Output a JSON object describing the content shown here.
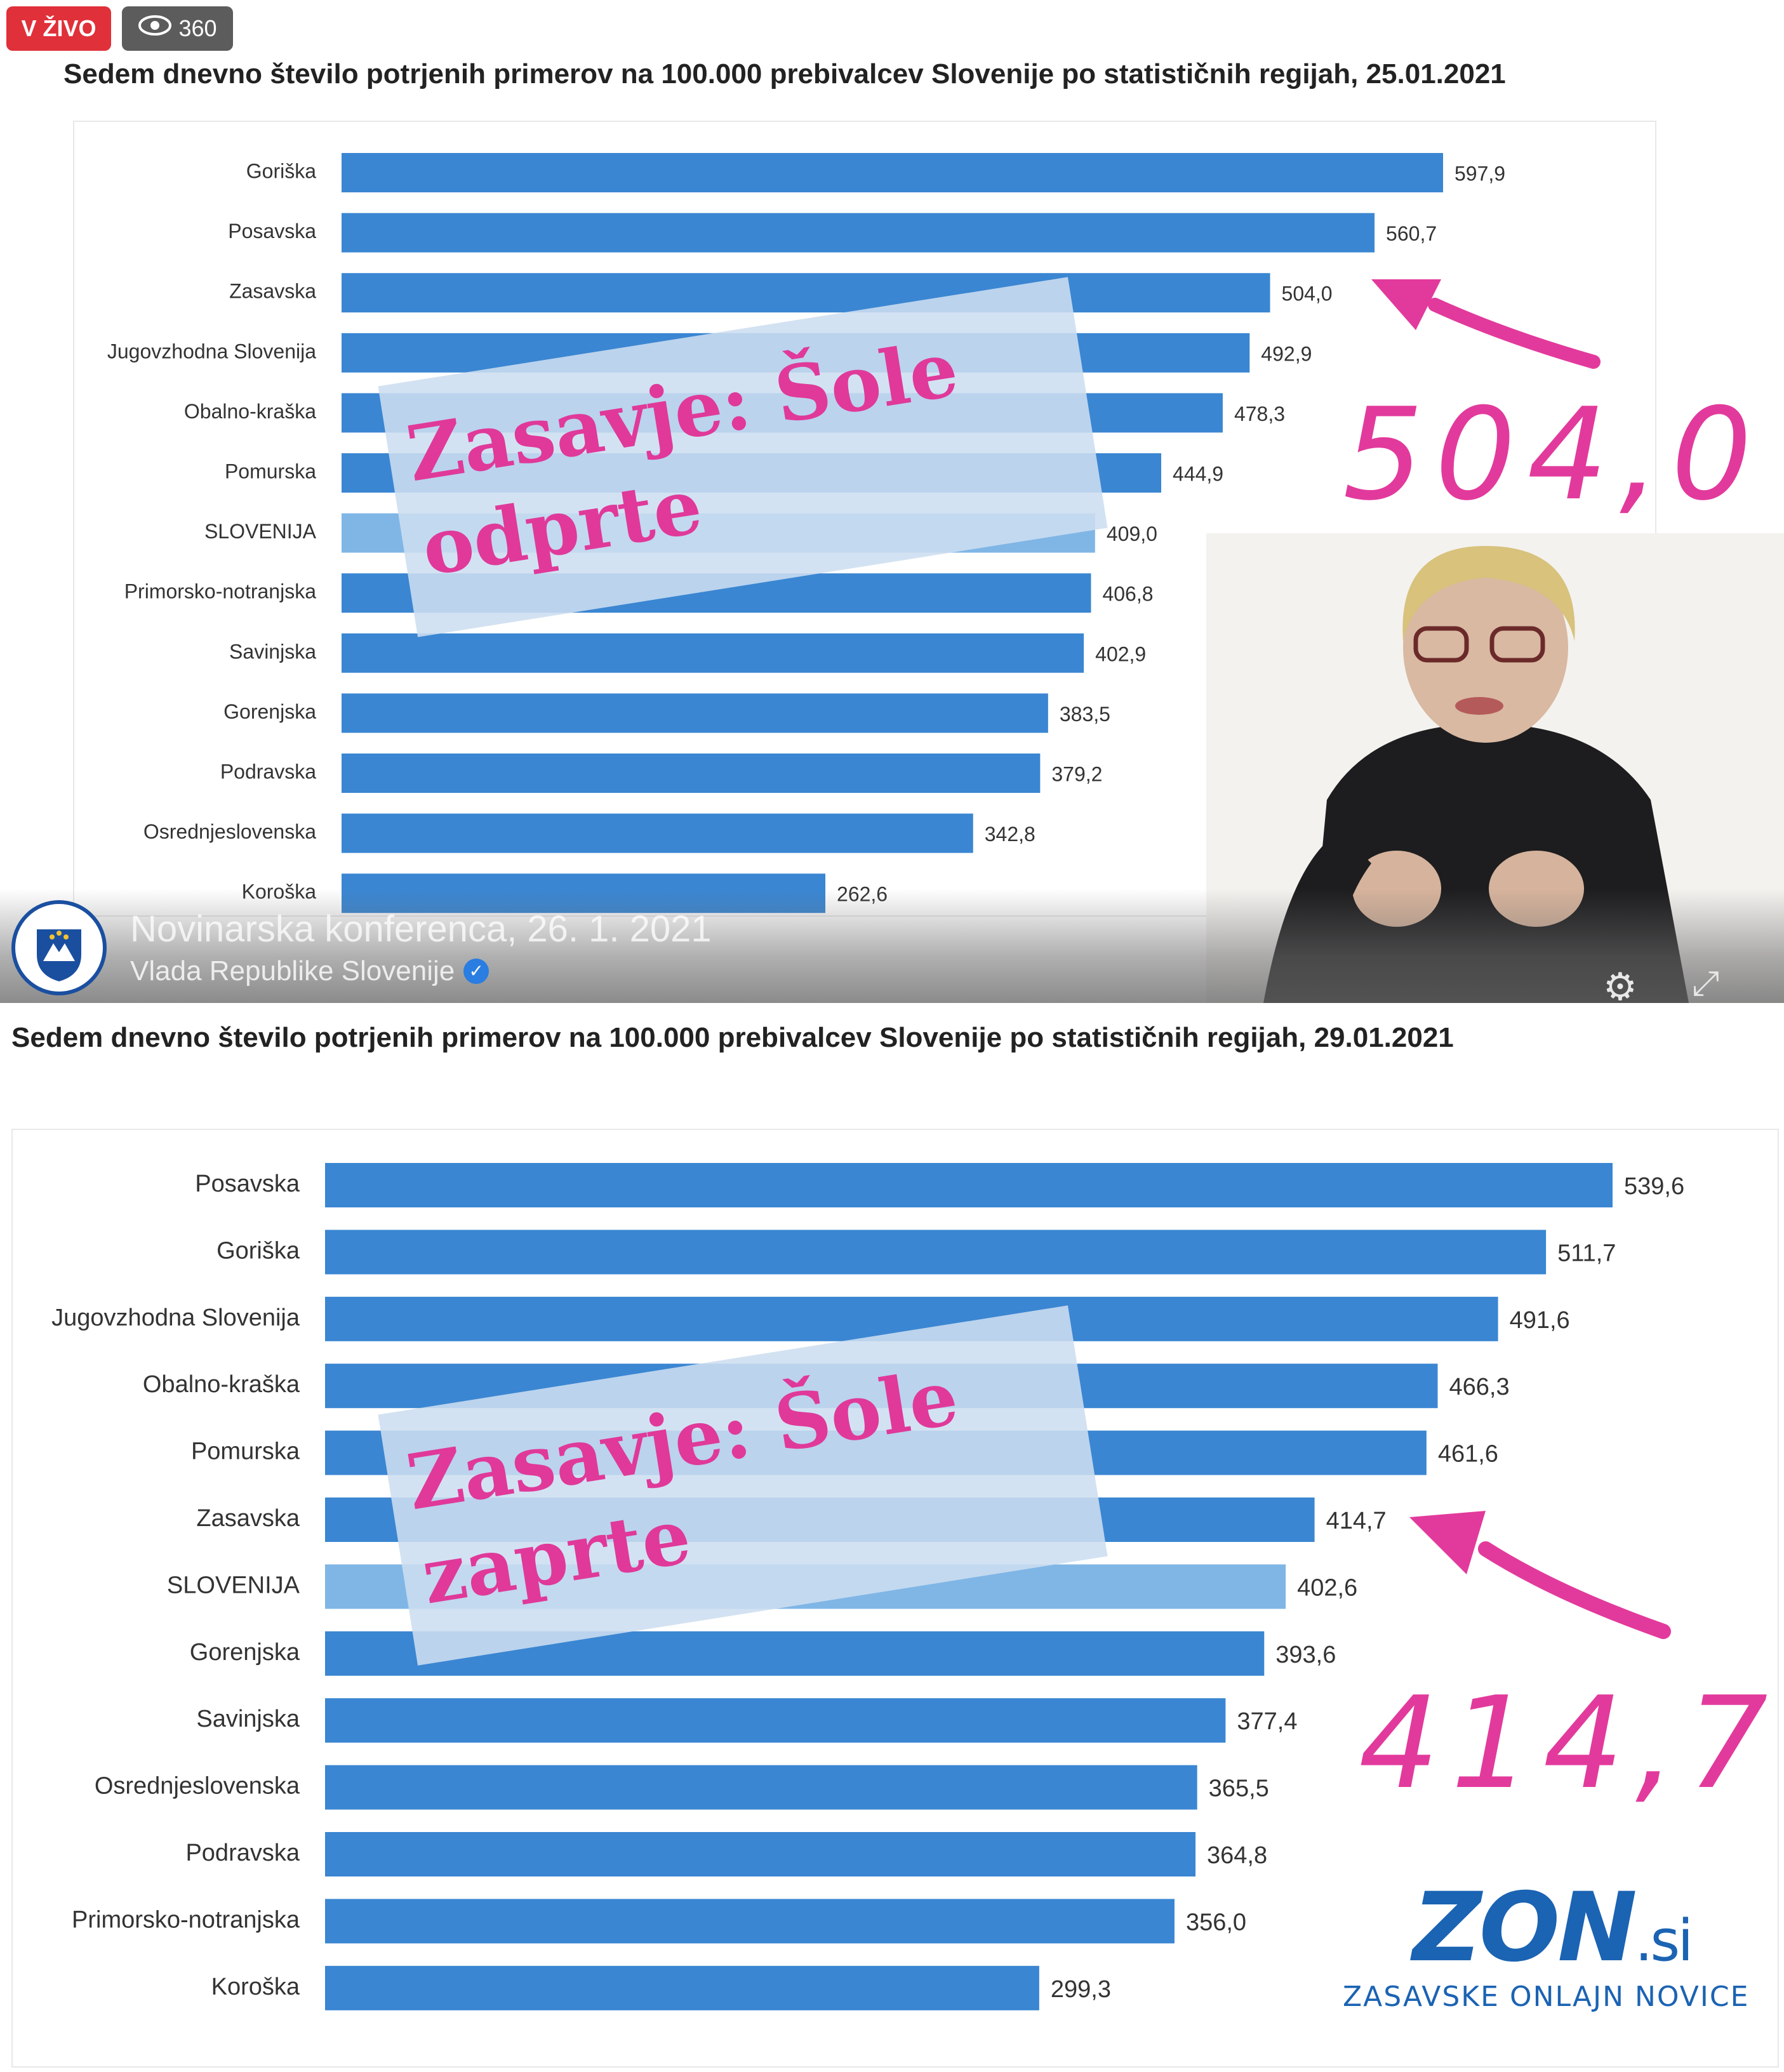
{
  "stream": {
    "live_label": "V ŽIVO",
    "viewers": "360",
    "video_title": "Novinarska konferenca, 26. 1. 2021",
    "channel": "Vlada Republike Slovenije"
  },
  "overlays": {
    "top_text_line1": "Zasavje: Šole",
    "top_text_line2": "odprte",
    "top_big_number": "504,0",
    "bottom_text_line1": "Zasavje: Šole",
    "bottom_text_line2": "zaprte",
    "bottom_big_number": "414,7"
  },
  "logo": {
    "mark": "ZON",
    "suffix": ".si",
    "subtitle": "ZASAVSKE ONLAJN NOVICE"
  },
  "colors": {
    "bar": "#3a86d2",
    "bar_slovenija": "#7fb6e6",
    "pink": "#e23a9c",
    "logo_blue": "#1b63b3"
  },
  "chart_data": [
    {
      "type": "bar",
      "orientation": "horizontal",
      "title": "Sedem dnevno število potrjenih primerov na 100.000 prebivalcev Slovenije po statističnih regijah, 25.01.2021",
      "categories": [
        "Goriška",
        "Posavska",
        "Zasavska",
        "Jugovzhodna Slovenija",
        "Obalno-kraška",
        "Pomurska",
        "SLOVENIJA",
        "Primorsko-notranjska",
        "Savinjska",
        "Gorenjska",
        "Podravska",
        "Osrednjeslovenska",
        "Koroška"
      ],
      "values": [
        597.9,
        560.7,
        504.0,
        492.9,
        478.3,
        444.9,
        409.0,
        406.8,
        402.9,
        383.5,
        379.2,
        342.8,
        262.6
      ],
      "labels": [
        "597,9",
        "560,7",
        "504,0",
        "492,9",
        "478,3",
        "444,9",
        "409,0",
        "406,8",
        "402,9",
        "383,5",
        "379,2",
        "342,8",
        "262,6"
      ],
      "highlight": "SLOVENIJA",
      "xlim": [
        0,
        597.9
      ]
    },
    {
      "type": "bar",
      "orientation": "horizontal",
      "title": "Sedem dnevno število potrjenih primerov na 100.000 prebivalcev Slovenije po statističnih regijah, 29.01.2021",
      "categories": [
        "Posavska",
        "Goriška",
        "Jugovzhodna Slovenija",
        "Obalno-kraška",
        "Pomurska",
        "Zasavska",
        "SLOVENIJA",
        "Gorenjska",
        "Savinjska",
        "Osrednjeslovenska",
        "Podravska",
        "Primorsko-notranjska",
        "Koroška"
      ],
      "values": [
        539.6,
        511.7,
        491.6,
        466.3,
        461.6,
        414.7,
        402.6,
        393.6,
        377.4,
        365.5,
        364.8,
        356.0,
        299.3
      ],
      "labels": [
        "539,6",
        "511,7",
        "491,6",
        "466,3",
        "461,6",
        "414,7",
        "402,6",
        "393,6",
        "377,4",
        "365,5",
        "364,8",
        "356,0",
        "299,3"
      ],
      "highlight": "SLOVENIJA",
      "xlim": [
        0,
        539.6
      ]
    }
  ]
}
